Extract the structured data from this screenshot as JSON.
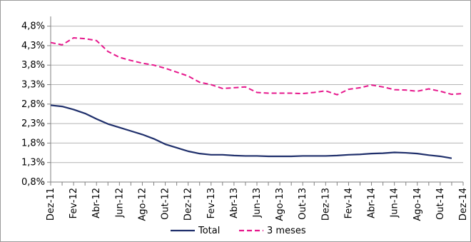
{
  "chart_data": {
    "type": "line",
    "x": [
      "Dez-11",
      "Jan-12",
      "Fev-12",
      "Mar-12",
      "Abr-12",
      "Mai-12",
      "Jun-12",
      "Jul-12",
      "Ago-12",
      "Set-12",
      "Out-12",
      "Nov-12",
      "Dez-12",
      "Jan-13",
      "Fev-13",
      "Mar-13",
      "Abr-13",
      "Mai-13",
      "Jun-13",
      "Jul-13",
      "Ago-13",
      "Set-13",
      "Out-13",
      "Nov-13",
      "Dez-13",
      "Jan-14",
      "Fev-14",
      "Mar-14",
      "Abr-14",
      "Mai-14",
      "Jun-14",
      "Jul-14",
      "Ago-14",
      "Set-14",
      "Out-14",
      "Nov-14",
      "Dez-14"
    ],
    "x_tick_labels": [
      "Dez-11",
      "Fev-12",
      "Abr-12",
      "Jun-12",
      "Ago-12",
      "Out-12",
      "Dez-12",
      "Fev-13",
      "Abr-13",
      "Jun-13",
      "Ago-13",
      "Out-13",
      "Dez-13",
      "Fev-14",
      "Abr-14",
      "Jun-14",
      "Ago-14",
      "Out-14",
      "Dez-14"
    ],
    "y_ticks": [
      "0,8%",
      "1,3%",
      "1,8%",
      "2,3%",
      "2,8%",
      "3,3%",
      "3,8%",
      "4,3%",
      "4,8%"
    ],
    "ylim": [
      0.8,
      5.05
    ],
    "grid": true,
    "legend_position": "bottom",
    "series": [
      {
        "name": "Total",
        "color": "#1f2f6b",
        "style": "solid",
        "values": [
          2.77,
          2.74,
          2.66,
          2.56,
          2.42,
          2.29,
          2.2,
          2.11,
          2.02,
          1.91,
          1.77,
          1.68,
          1.59,
          1.53,
          1.5,
          1.5,
          1.48,
          1.47,
          1.47,
          1.46,
          1.46,
          1.46,
          1.47,
          1.47,
          1.47,
          1.48,
          1.5,
          1.51,
          1.53,
          1.54,
          1.56,
          1.55,
          1.53,
          1.49,
          1.46,
          1.41,
          null
        ]
      },
      {
        "name": "3 meses",
        "color": "#e6178c",
        "style": "dashed",
        "values": [
          4.38,
          4.32,
          4.5,
          4.48,
          4.43,
          4.15,
          4.0,
          3.92,
          3.85,
          3.8,
          3.72,
          3.62,
          3.52,
          3.36,
          3.3,
          3.2,
          3.22,
          3.24,
          3.1,
          3.08,
          3.08,
          3.08,
          3.07,
          3.1,
          3.14,
          3.04,
          3.18,
          3.22,
          3.29,
          3.24,
          3.17,
          3.16,
          3.13,
          3.19,
          3.13,
          3.05,
          3.07
        ]
      }
    ]
  }
}
